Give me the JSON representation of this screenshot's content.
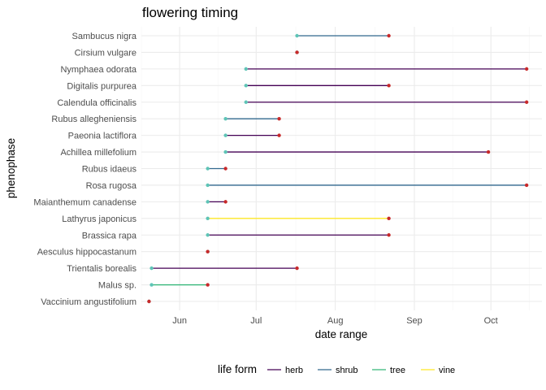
{
  "chart_data": {
    "type": "line",
    "title": "flowering timing",
    "xlabel": "date range",
    "ylabel": "phenophase",
    "x_ticks": [
      {
        "label": "Jun",
        "date": "2021-06-01"
      },
      {
        "label": "Jul",
        "date": "2021-07-01"
      },
      {
        "label": "Aug",
        "date": "2021-08-01"
      },
      {
        "label": "Sep",
        "date": "2021-09-01"
      },
      {
        "label": "Oct",
        "date": "2021-10-01"
      }
    ],
    "xlim": [
      "2021-05-17",
      "2021-10-21"
    ],
    "grid": true,
    "legend": {
      "title": "life form",
      "position": "bottom",
      "entries": [
        {
          "label": "herb",
          "color": "#440154"
        },
        {
          "label": "shrub",
          "color": "#31688e"
        },
        {
          "label": "tree",
          "color": "#35b779"
        },
        {
          "label": "vine",
          "color": "#fde725"
        }
      ]
    },
    "start_point_color": "#5ec4b6",
    "end_point_color": "#c8292a",
    "categories": [
      "Sambucus nigra",
      "Cirsium vulgare",
      "Nymphaea odorata",
      "Digitalis purpurea",
      "Calendula officinalis",
      "Rubus allegheniensis",
      "Paeonia lactiflora",
      "Achillea millefolium",
      "Rubus idaeus",
      "Rosa rugosa",
      "Maianthemum canadense",
      "Lathyrus japonicus",
      "Brassica rapa",
      "Aesculus hippocastanum",
      "Trientalis borealis",
      "Malus sp.",
      "Vaccinium angustifolium"
    ],
    "series": [
      {
        "category": "Sambucus nigra",
        "life_form": "shrub",
        "start": "2021-07-17",
        "end": "2021-08-22"
      },
      {
        "category": "Cirsium vulgare",
        "life_form": "herb",
        "start": "2021-07-17",
        "end": "2021-07-17"
      },
      {
        "category": "Nymphaea odorata",
        "life_form": "herb",
        "start": "2021-06-27",
        "end": "2021-10-15"
      },
      {
        "category": "Digitalis purpurea",
        "life_form": "herb",
        "start": "2021-06-27",
        "end": "2021-08-22"
      },
      {
        "category": "Calendula officinalis",
        "life_form": "herb",
        "start": "2021-06-27",
        "end": "2021-10-15"
      },
      {
        "category": "Rubus allegheniensis",
        "life_form": "shrub",
        "start": "2021-06-19",
        "end": "2021-07-10"
      },
      {
        "category": "Paeonia lactiflora",
        "life_form": "herb",
        "start": "2021-06-19",
        "end": "2021-07-10"
      },
      {
        "category": "Achillea millefolium",
        "life_form": "herb",
        "start": "2021-06-19",
        "end": "2021-09-30"
      },
      {
        "category": "Rubus idaeus",
        "life_form": "shrub",
        "start": "2021-06-12",
        "end": "2021-06-19"
      },
      {
        "category": "Rosa rugosa",
        "life_form": "shrub",
        "start": "2021-06-12",
        "end": "2021-10-15"
      },
      {
        "category": "Maianthemum canadense",
        "life_form": "herb",
        "start": "2021-06-12",
        "end": "2021-06-19"
      },
      {
        "category": "Lathyrus japonicus",
        "life_form": "vine",
        "start": "2021-06-12",
        "end": "2021-08-22"
      },
      {
        "category": "Brassica rapa",
        "life_form": "herb",
        "start": "2021-06-12",
        "end": "2021-08-22"
      },
      {
        "category": "Aesculus hippocastanum",
        "life_form": "tree",
        "start": "2021-06-12",
        "end": "2021-06-12"
      },
      {
        "category": "Trientalis borealis",
        "life_form": "herb",
        "start": "2021-05-21",
        "end": "2021-07-17"
      },
      {
        "category": "Malus sp.",
        "life_form": "tree",
        "start": "2021-05-21",
        "end": "2021-06-12"
      },
      {
        "category": "Vaccinium angustifolium",
        "life_form": "shrub",
        "start": "2021-05-20",
        "end": "2021-05-20"
      }
    ]
  }
}
